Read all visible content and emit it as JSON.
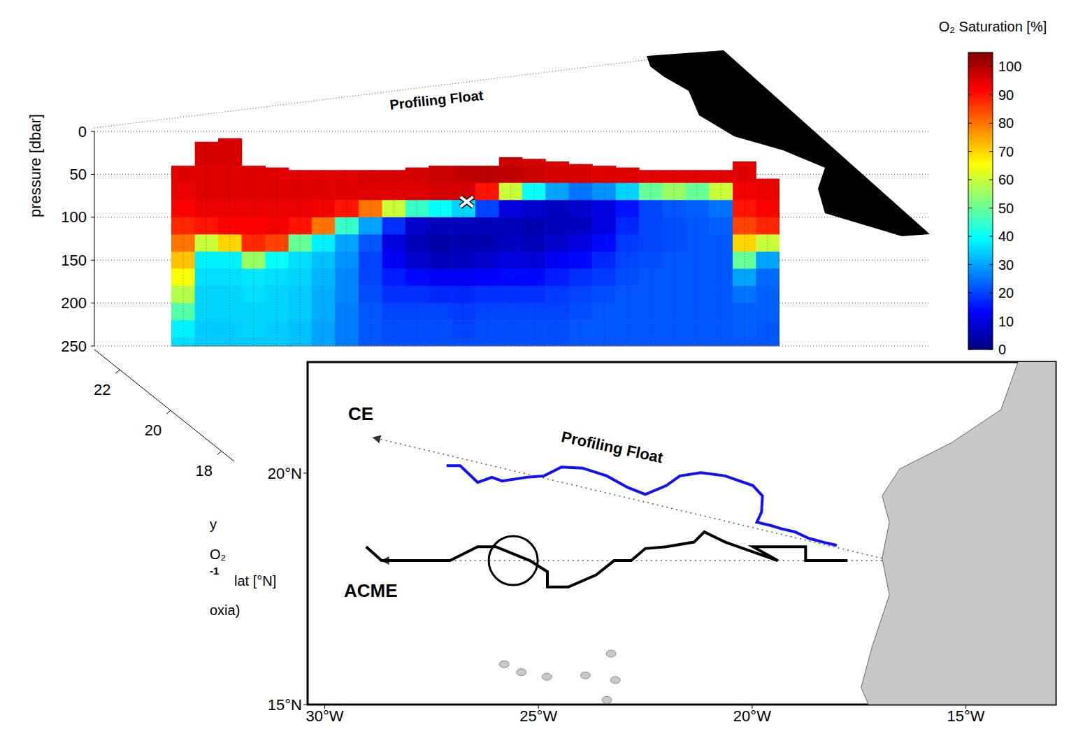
{
  "chart_data": [
    {
      "type": "heatmap",
      "title": "Profiling Float",
      "ylabel": "pressure [dbar]",
      "ylim": [
        250,
        0
      ],
      "yticks": [
        0,
        50,
        100,
        150,
        200,
        250
      ],
      "xlim": [
        -27.18,
        -18.02
      ],
      "xticks": [],
      "lat_axis": {
        "label": "lat [°N]",
        "lim": [
          17.5,
          23
        ],
        "ticks": [
          18,
          20,
          22
        ]
      },
      "grid": true,
      "pressure": [
        10,
        30,
        50,
        70,
        90,
        110,
        130,
        150,
        170,
        190,
        210,
        230,
        250
      ],
      "profiles": [
        {
          "lon": -27.0,
          "top": 40,
          "values": [
            null,
            null,
            95,
            94,
            92,
            88,
            80,
            72,
            65,
            58,
            48,
            38,
            36
          ]
        },
        {
          "lon": -26.65,
          "top": 12,
          "values": [
            96,
            96,
            95,
            95,
            94,
            90,
            60,
            38,
            36,
            35,
            35,
            34,
            34
          ]
        },
        {
          "lon": -26.3,
          "top": 8,
          "values": [
            96,
            96,
            95,
            95,
            94,
            92,
            70,
            38,
            36,
            35,
            35,
            34,
            34
          ]
        },
        {
          "lon": -25.94,
          "top": 40,
          "values": [
            null,
            null,
            95,
            95,
            94,
            92,
            88,
            55,
            37,
            36,
            35,
            35,
            34
          ]
        },
        {
          "lon": -25.59,
          "top": 42,
          "values": [
            null,
            null,
            95,
            95,
            94,
            93,
            85,
            40,
            36,
            35,
            35,
            34,
            34
          ]
        },
        {
          "lon": -25.24,
          "top": 45,
          "values": [
            null,
            null,
            95,
            95,
            94,
            90,
            50,
            36,
            35,
            34,
            34,
            33,
            33
          ]
        },
        {
          "lon": -24.89,
          "top": 45,
          "values": [
            null,
            null,
            95,
            95,
            93,
            80,
            38,
            33,
            32,
            31,
            31,
            30,
            30
          ]
        },
        {
          "lon": -24.54,
          "top": 45,
          "values": [
            null,
            null,
            95,
            95,
            90,
            45,
            30,
            28,
            27,
            27,
            26,
            26,
            26
          ]
        },
        {
          "lon": -24.18,
          "top": 45,
          "values": [
            null,
            null,
            96,
            95,
            80,
            30,
            22,
            20,
            20,
            21,
            22,
            22,
            22
          ]
        },
        {
          "lon": -23.83,
          "top": 45,
          "values": [
            null,
            null,
            96,
            95,
            60,
            18,
            10,
            12,
            16,
            18,
            20,
            21,
            21
          ]
        },
        {
          "lon": -23.48,
          "top": 42,
          "values": [
            null,
            null,
            96,
            95,
            45,
            8,
            6,
            8,
            14,
            18,
            20,
            21,
            21
          ]
        },
        {
          "lon": -23.13,
          "top": 40,
          "values": [
            null,
            null,
            97,
            96,
            40,
            6,
            4,
            6,
            12,
            17,
            20,
            21,
            21
          ]
        },
        {
          "lon": -22.78,
          "top": 40,
          "values": [
            null,
            null,
            98,
            96,
            35,
            6,
            5,
            7,
            12,
            17,
            19,
            20,
            21
          ]
        },
        {
          "lon": -22.42,
          "top": 38,
          "values": [
            null,
            null,
            99,
            90,
            20,
            6,
            5,
            8,
            13,
            18,
            20,
            21,
            21
          ]
        },
        {
          "lon": -22.07,
          "top": 30,
          "values": [
            null,
            97,
            98,
            60,
            10,
            6,
            7,
            10,
            14,
            18,
            20,
            21,
            21
          ]
        },
        {
          "lon": -21.72,
          "top": 32,
          "values": [
            null,
            96,
            97,
            40,
            8,
            5,
            6,
            9,
            14,
            18,
            20,
            21,
            21
          ]
        },
        {
          "lon": -21.37,
          "top": 35,
          "values": [
            null,
            95,
            96,
            30,
            7,
            6,
            8,
            12,
            16,
            19,
            20,
            21,
            21
          ]
        },
        {
          "lon": -21.02,
          "top": 38,
          "values": [
            null,
            95,
            96,
            25,
            8,
            7,
            10,
            14,
            18,
            20,
            21,
            22,
            22
          ]
        },
        {
          "lon": -20.66,
          "top": 40,
          "values": [
            null,
            null,
            95,
            28,
            10,
            10,
            14,
            17,
            19,
            21,
            22,
            22,
            22
          ]
        },
        {
          "lon": -20.31,
          "top": 42,
          "values": [
            null,
            null,
            95,
            35,
            15,
            17,
            19,
            20,
            21,
            22,
            22,
            22,
            22
          ]
        },
        {
          "lon": -19.96,
          "top": 45,
          "values": [
            null,
            null,
            95,
            50,
            20,
            20,
            20,
            21,
            22,
            22,
            22,
            22,
            22
          ]
        },
        {
          "lon": -19.61,
          "top": 45,
          "values": [
            null,
            null,
            95,
            55,
            22,
            21,
            21,
            22,
            22,
            22,
            22,
            22,
            22
          ]
        },
        {
          "lon": -19.26,
          "top": 45,
          "values": [
            null,
            null,
            95,
            50,
            23,
            22,
            22,
            22,
            22,
            22,
            22,
            22,
            22
          ]
        },
        {
          "lon": -18.9,
          "top": 45,
          "values": [
            null,
            null,
            95,
            60,
            25,
            23,
            22,
            22,
            22,
            22,
            22,
            22,
            22
          ]
        },
        {
          "lon": -18.55,
          "top": 35,
          "values": [
            null,
            95,
            95,
            93,
            90,
            85,
            70,
            50,
            30,
            25,
            23,
            23,
            22
          ]
        },
        {
          "lon": -18.2,
          "top": 55,
          "values": [
            null,
            null,
            94,
            94,
            92,
            88,
            60,
            30,
            24,
            23,
            23,
            22,
            22
          ]
        }
      ],
      "cross_mark": {
        "lon": -22.73,
        "pressure": 82
      },
      "colorbar": {
        "label": "O₂ Saturation [%]",
        "lim": [
          0,
          105
        ],
        "ticks": [
          0,
          10,
          20,
          30,
          40,
          50,
          60,
          70,
          80,
          90,
          100
        ]
      },
      "side_text": [
        "y",
        "O₂",
        "-1",
        "oxia)"
      ]
    },
    {
      "type": "map",
      "xlim": [
        -30.4,
        -12.9
      ],
      "xticks": [
        {
          "value": -30,
          "label": "30°W"
        },
        {
          "value": -25,
          "label": "25°W"
        },
        {
          "value": -20,
          "label": "20°W"
        },
        {
          "value": -15,
          "label": "15°W"
        }
      ],
      "ylim": [
        15,
        22.4
      ],
      "yticks": [
        {
          "value": 15,
          "label": "15°N"
        },
        {
          "value": 20,
          "label": "20°N"
        }
      ],
      "coastline": {
        "lon": [
          -13.78,
          -14.18,
          -15.33,
          -16.55,
          -16.96,
          -16.79,
          -16.96,
          -16.79,
          -17.2,
          -17.45,
          -17.28
        ],
        "lat": [
          22.4,
          21.37,
          20.66,
          20.09,
          19.51,
          18.94,
          18.16,
          17.37,
          16.23,
          15.37,
          15.0
        ]
      },
      "islands": {
        "lon": [
          -25.8,
          -25.4,
          -24.8,
          -23.9,
          -23.3,
          -23.2,
          -23.4
        ],
        "lat": [
          15.87,
          15.7,
          15.6,
          15.63,
          16.1,
          15.53,
          15.1
        ]
      },
      "series": [
        {
          "lon": [
            -16.96,
            -28.87
          ],
          "lat": [
            18.16,
            20.77
          ],
          "color": "#555555",
          "line_style": "dotted",
          "marker": "arrow"
        },
        {
          "lon": [
            -16.96,
            -28.67
          ],
          "lat": [
            18.11,
            18.11
          ],
          "color": "#555555",
          "line_style": "dotted",
          "marker": "arrow"
        },
        {
          "lon": [
            -27.15,
            -26.83,
            -26.66,
            -26.42,
            -26.09,
            -25.85,
            -25.28,
            -24.87,
            -24.46,
            -23.97,
            -23.4,
            -22.91,
            -22.5,
            -22.01,
            -21.69,
            -21.2,
            -20.63,
            -19.98,
            -19.76,
            -19.78,
            -19.89,
            -19.57,
            -19.32,
            -19.0,
            -18.67,
            -18.34,
            -18.02
          ],
          "lat": [
            20.16,
            20.16,
            20.01,
            19.8,
            19.91,
            19.83,
            19.91,
            19.94,
            20.13,
            20.11,
            19.94,
            19.69,
            19.54,
            19.73,
            19.94,
            20.01,
            19.94,
            19.73,
            19.51,
            19.16,
            18.94,
            18.87,
            18.8,
            18.73,
            18.59,
            18.51,
            18.44
          ],
          "color": "#1010ff",
          "line_style": "solid",
          "marker": "none"
        },
        {
          "lon": [
            -17.77,
            -18.75,
            -18.75,
            -19.98,
            -19.4,
            -20.63,
            -21.12,
            -21.36,
            -22.01,
            -22.5,
            -22.83,
            -23.23,
            -23.65,
            -24.3,
            -24.79,
            -24.79,
            -25.2,
            -26.0,
            -26.42,
            -27.07,
            -28.67,
            -29.03
          ],
          "lat": [
            18.11,
            18.11,
            18.41,
            18.41,
            18.11,
            18.51,
            18.73,
            18.51,
            18.41,
            18.37,
            18.11,
            18.11,
            17.8,
            17.54,
            17.54,
            17.87,
            18.11,
            18.41,
            18.41,
            18.11,
            18.11,
            18.41
          ],
          "color": "#000000",
          "line_style": "solid",
          "marker": "none"
        }
      ],
      "circle": {
        "lon": -25.59,
        "lat": 18.11
      },
      "annotations": [
        {
          "text": "CE",
          "lon": -29.45,
          "lat": 21.15
        },
        {
          "text": "ACME",
          "lon": -29.55,
          "lat": 17.32
        },
        {
          "text": "Profiling Float",
          "lon": -23.3,
          "lat": 20.45
        }
      ]
    }
  ]
}
